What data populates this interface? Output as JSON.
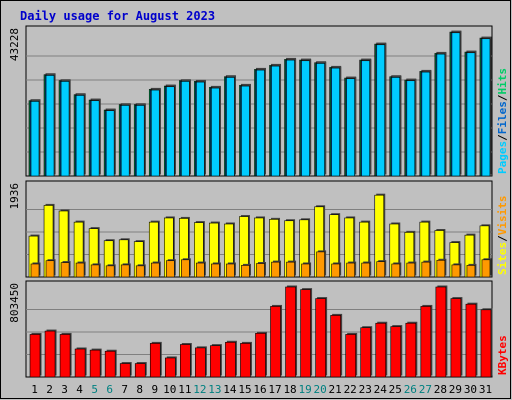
{
  "title": "Daily usage for August 2023",
  "colors": {
    "background": "#c0c0c0",
    "panel": "#c0c0c0",
    "grid": "#808080",
    "title": "#0000cc",
    "pages": "#00ccff",
    "files": "#0066cc",
    "hits": "#00cc66",
    "sites": "#ffff00",
    "visits": "#ff9900",
    "kbytes": "#ff0000",
    "weekday_label": "#000000",
    "weekend_label": "#008080"
  },
  "chart_data": [
    {
      "type": "bar",
      "name": "hits-files-pages",
      "y_max_label": "43228",
      "ylim": [
        0,
        43228
      ],
      "legend": [
        "Pages",
        "/",
        "Files",
        "/",
        "Hits"
      ],
      "series": [
        {
          "name": "Hits",
          "values": [
            22600,
            30400,
            28600,
            24400,
            22800,
            19800,
            21400,
            21400,
            26000,
            27000,
            28600,
            28400,
            26600,
            29800,
            27200,
            32000,
            33200,
            35000,
            34800,
            34000,
            32600,
            29400,
            34800,
            39600,
            29800,
            28800,
            31400,
            36800,
            43200,
            37200,
            41400
          ]
        },
        {
          "name": "Files",
          "values": [
            22400,
            30200,
            28400,
            24200,
            22600,
            19600,
            21200,
            21200,
            25800,
            26800,
            28400,
            28200,
            26400,
            29600,
            27000,
            31800,
            33000,
            34800,
            34600,
            33800,
            32400,
            29200,
            34600,
            39400,
            29600,
            28600,
            31200,
            36600,
            43000,
            37000,
            41200
          ]
        },
        {
          "name": "Pages",
          "values": [
            22400,
            30200,
            28400,
            24200,
            22600,
            19600,
            21200,
            21200,
            25800,
            26800,
            28400,
            28200,
            26400,
            29600,
            27000,
            31800,
            33000,
            34800,
            34600,
            33800,
            32400,
            29200,
            34600,
            39400,
            29600,
            28600,
            31200,
            36600,
            43000,
            37000,
            41200
          ]
        }
      ]
    },
    {
      "type": "bar",
      "name": "visits-sites",
      "y_max_label": "1936",
      "ylim": [
        0,
        1936
      ],
      "legend": [
        "Sites",
        "/",
        "Visits"
      ],
      "series": [
        {
          "name": "Sites",
          "values": [
            880,
            1540,
            1420,
            1180,
            1040,
            780,
            800,
            760,
            1180,
            1270,
            1260,
            1170,
            1160,
            1140,
            1300,
            1270,
            1240,
            1210,
            1230,
            1510,
            1340,
            1270,
            1180,
            1760,
            1140,
            960,
            1180,
            1000,
            740,
            900,
            1100
          ]
        },
        {
          "name": "Visits",
          "values": [
            280,
            350,
            310,
            300,
            260,
            240,
            260,
            240,
            300,
            350,
            370,
            300,
            280,
            280,
            250,
            290,
            320,
            320,
            280,
            540,
            280,
            300,
            300,
            330,
            280,
            300,
            320,
            360,
            260,
            250,
            370
          ]
        }
      ]
    },
    {
      "type": "bar",
      "name": "kbytes",
      "y_max_label": "803450",
      "ylim": [
        0,
        803450
      ],
      "legend": [
        "KBytes"
      ],
      "series": [
        {
          "name": "KBytes",
          "values": [
            380000,
            410000,
            380000,
            250000,
            240000,
            230000,
            120000,
            120000,
            300000,
            170000,
            290000,
            260000,
            280000,
            310000,
            300000,
            390000,
            630000,
            803450,
            780000,
            700000,
            550000,
            380000,
            440000,
            480000,
            450000,
            480000,
            630000,
            803450,
            700000,
            650000,
            600000
          ]
        }
      ]
    }
  ],
  "days": [
    "1",
    "2",
    "3",
    "4",
    "5",
    "6",
    "7",
    "8",
    "9",
    "10",
    "11",
    "12",
    "13",
    "14",
    "15",
    "16",
    "17",
    "18",
    "19",
    "20",
    "21",
    "22",
    "23",
    "24",
    "25",
    "26",
    "27",
    "28",
    "29",
    "30",
    "31"
  ],
  "weekend_days": [
    5,
    6,
    12,
    13,
    19,
    20,
    26,
    27
  ]
}
